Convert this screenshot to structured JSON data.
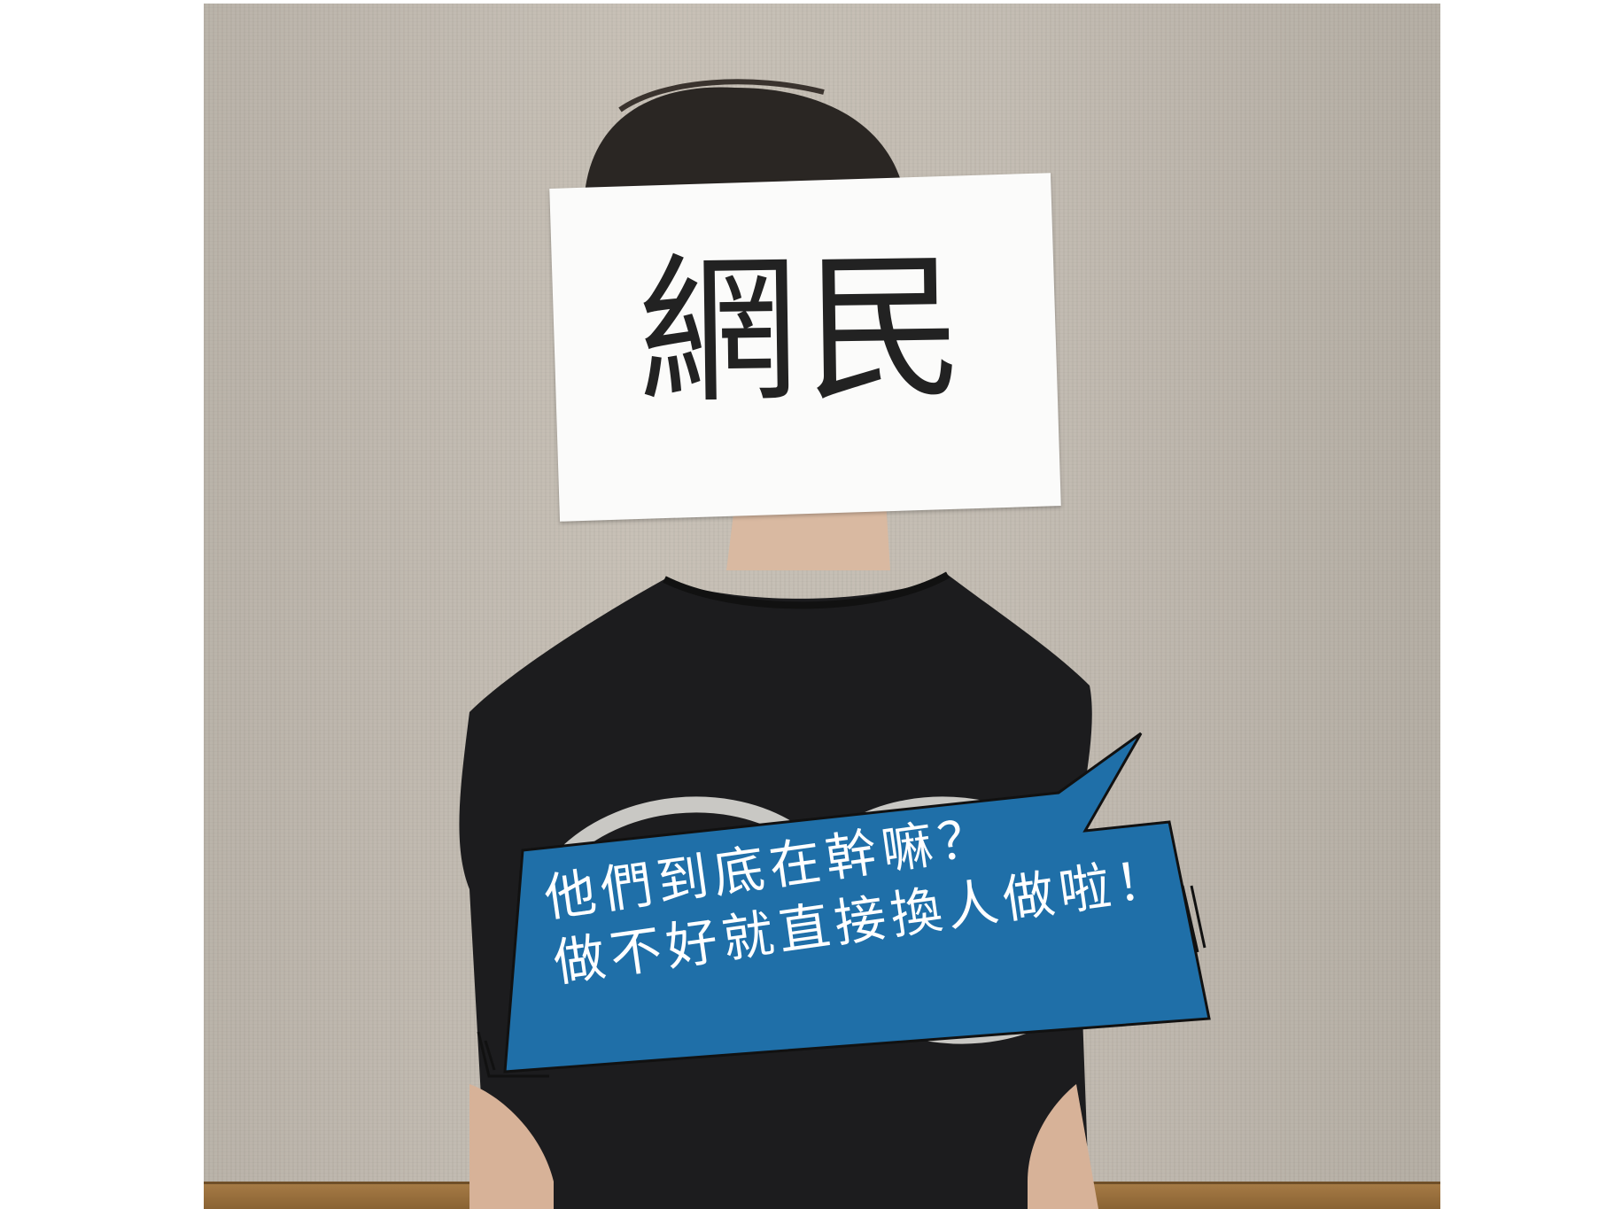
{
  "sign": {
    "text": "網民"
  },
  "speech_bubble": {
    "line1": "他們到底在幹嘛？",
    "line2": "做不好就直接換人做啦！"
  },
  "colors": {
    "bubble_fill": "#1f6fa8",
    "bubble_outline": "#111111",
    "shirt": "#1c1c1e",
    "wall": "#c3bcb2",
    "sign_paper": "#fbfbfa",
    "trim": "#9a6f3c"
  }
}
